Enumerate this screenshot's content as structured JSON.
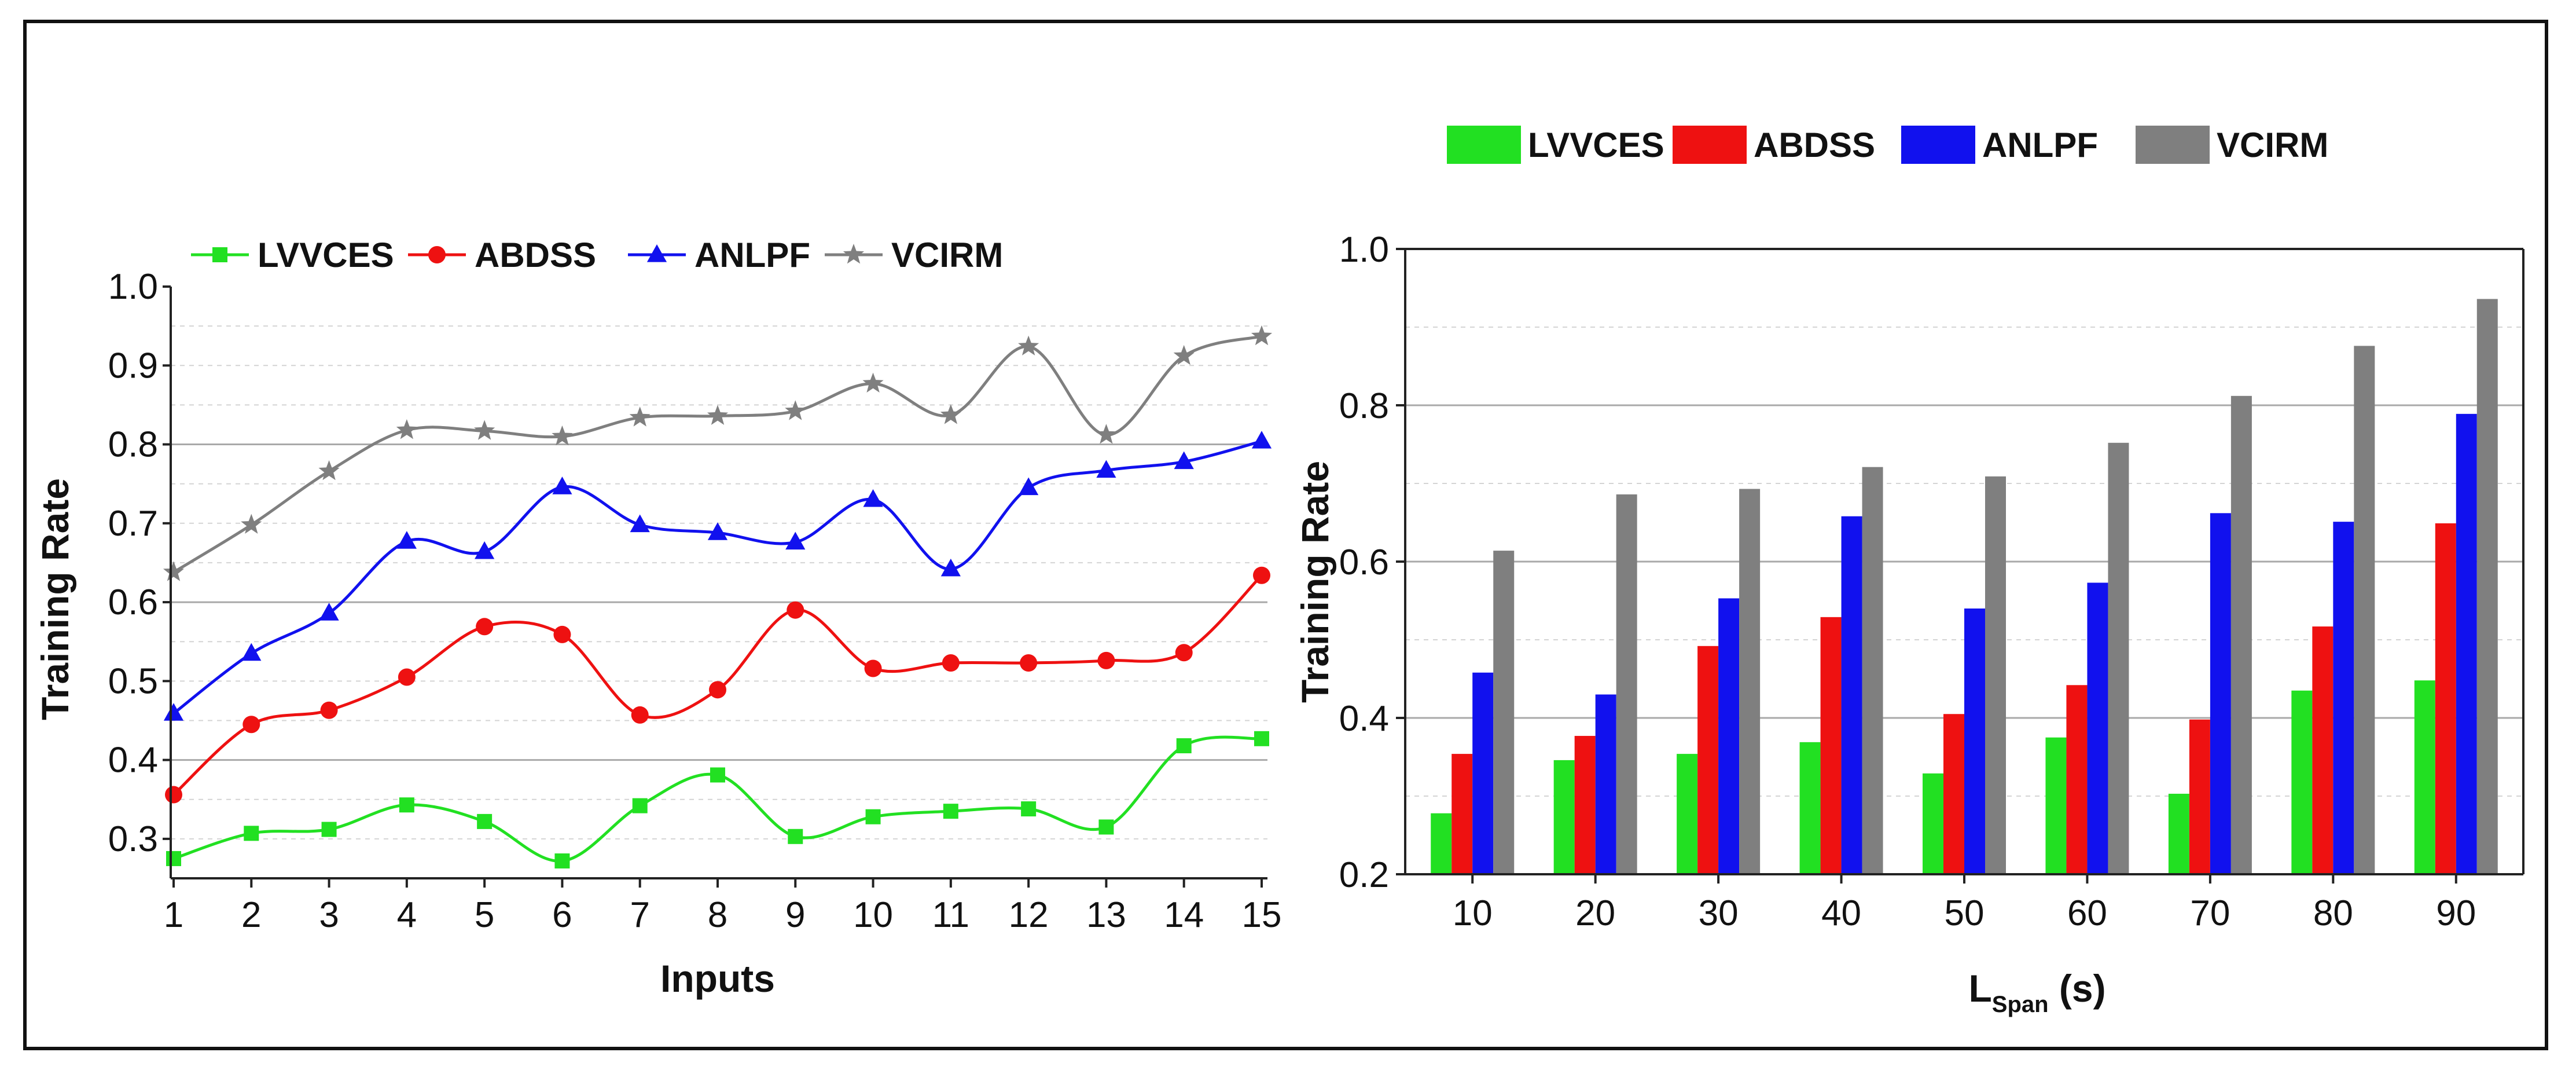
{
  "colors": {
    "LVVCES": "#22e022",
    "ABDSS": "#ee1111",
    "ANLPF": "#1111ee",
    "VCIRM": "#7f7f7f"
  },
  "chart_data": [
    {
      "type": "line",
      "title": "",
      "xlabel": "Inputs",
      "ylabel": "Training Rate",
      "x": [
        1,
        2,
        3,
        4,
        5,
        6,
        7,
        8,
        9,
        10,
        11,
        12,
        13,
        14,
        15
      ],
      "xticks": [
        "1",
        "2",
        "3",
        "4",
        "5",
        "6",
        "7",
        "8",
        "9",
        "10",
        "11",
        "12",
        "13",
        "14",
        "15"
      ],
      "yticks": [
        "0.3",
        "0.4",
        "0.5",
        "0.6",
        "0.7",
        "0.8",
        "0.9",
        "1.0"
      ],
      "ylim": [
        0.25,
        1.0
      ],
      "series": [
        {
          "name": "LVVCES",
          "marker": "square",
          "values": [
            0.275,
            0.307,
            0.312,
            0.343,
            0.322,
            0.272,
            0.342,
            0.381,
            0.303,
            0.328,
            0.335,
            0.338,
            0.315,
            0.418,
            0.427
          ]
        },
        {
          "name": "ABDSS",
          "marker": "circle",
          "values": [
            0.356,
            0.445,
            0.463,
            0.505,
            0.569,
            0.559,
            0.457,
            0.489,
            0.59,
            0.516,
            0.523,
            0.523,
            0.526,
            0.536,
            0.634
          ]
        },
        {
          "name": "ANLPF",
          "marker": "triangle",
          "values": [
            0.459,
            0.535,
            0.586,
            0.677,
            0.664,
            0.746,
            0.698,
            0.688,
            0.676,
            0.73,
            0.642,
            0.745,
            0.767,
            0.778,
            0.804
          ]
        },
        {
          "name": "VCIRM",
          "marker": "star",
          "values": [
            0.638,
            0.698,
            0.766,
            0.818,
            0.817,
            0.81,
            0.834,
            0.836,
            0.842,
            0.877,
            0.837,
            0.924,
            0.812,
            0.912,
            0.937
          ]
        }
      ]
    },
    {
      "type": "bar",
      "title": "",
      "xlabel": "L",
      "xlabel_sub": "Span",
      "xlabel_suffix": " (s)",
      "ylabel": "Training Rate",
      "categories": [
        "10",
        "20",
        "30",
        "40",
        "50",
        "60",
        "70",
        "80",
        "90"
      ],
      "yticks": [
        "0.2",
        "0.4",
        "0.6",
        "0.8",
        "1.0"
      ],
      "ylim": [
        0.2,
        1.0
      ],
      "series": [
        {
          "name": "LVVCES",
          "values": [
            0.278,
            0.346,
            0.354,
            0.369,
            0.329,
            0.375,
            0.303,
            0.435,
            0.448
          ]
        },
        {
          "name": "ABDSS",
          "values": [
            0.354,
            0.377,
            0.492,
            0.529,
            0.405,
            0.442,
            0.398,
            0.517,
            0.649
          ]
        },
        {
          "name": "ANLPF",
          "values": [
            0.458,
            0.43,
            0.553,
            0.658,
            0.54,
            0.573,
            0.662,
            0.651,
            0.789
          ]
        },
        {
          "name": "VCIRM",
          "values": [
            0.614,
            0.686,
            0.693,
            0.721,
            0.709,
            0.752,
            0.812,
            0.876,
            0.936
          ]
        }
      ]
    }
  ]
}
